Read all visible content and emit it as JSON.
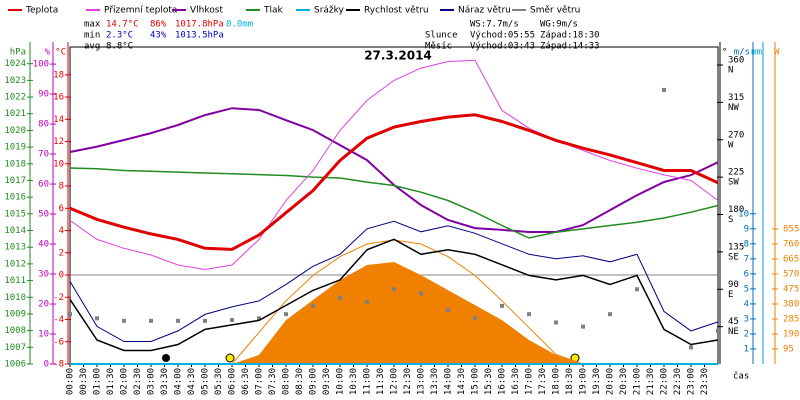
{
  "chart_data": {
    "type": "line",
    "title": "27.3.2014",
    "x_label": "čas",
    "x": [
      0,
      1,
      2,
      3,
      4,
      5,
      6,
      7,
      8,
      9,
      10,
      11,
      12,
      13,
      14,
      15,
      16,
      17,
      18,
      19,
      20,
      21,
      22,
      23,
      24
    ],
    "xlim": [
      0,
      24
    ],
    "xticks": [
      {
        "value": 0,
        "label": "00:00"
      },
      {
        "value": 0.5,
        "label": "00:30"
      },
      {
        "value": 1,
        "label": "01:00"
      },
      {
        "value": 1.5,
        "label": "01:30"
      },
      {
        "value": 2,
        "label": "02:00"
      },
      {
        "value": 2.5,
        "label": "02:30"
      },
      {
        "value": 3,
        "label": "03:00"
      },
      {
        "value": 3.5,
        "label": "03:30"
      },
      {
        "value": 4,
        "label": "04:00"
      },
      {
        "value": 4.5,
        "label": "04:30"
      },
      {
        "value": 5,
        "label": "05:00"
      },
      {
        "value": 5.5,
        "label": "05:30"
      },
      {
        "value": 6,
        "label": "06:00"
      },
      {
        "value": 6.5,
        "label": "06:30"
      },
      {
        "value": 7,
        "label": "07:00"
      },
      {
        "value": 7.5,
        "label": "07:30"
      },
      {
        "value": 8,
        "label": "08:00"
      },
      {
        "value": 8.5,
        "label": "08:30"
      },
      {
        "value": 9,
        "label": "09:00"
      },
      {
        "value": 9.5,
        "label": "09:30"
      },
      {
        "value": 10,
        "label": "10:00"
      },
      {
        "value": 10.5,
        "label": "10:30"
      },
      {
        "value": 11,
        "label": "11:00"
      },
      {
        "value": 11.5,
        "label": "11:30"
      },
      {
        "value": 12,
        "label": "12:00"
      },
      {
        "value": 12.5,
        "label": "12:30"
      },
      {
        "value": 13,
        "label": "13:00"
      },
      {
        "value": 13.5,
        "label": "13:30"
      },
      {
        "value": 14,
        "label": "14:00"
      },
      {
        "value": 14.5,
        "label": "14:30"
      },
      {
        "value": 15,
        "label": "15:00"
      },
      {
        "value": 15.5,
        "label": "15:30"
      },
      {
        "value": 16,
        "label": "16:00"
      },
      {
        "value": 16.5,
        "label": "16:30"
      },
      {
        "value": 17,
        "label": "17:00"
      },
      {
        "value": 17.5,
        "label": "17:30"
      },
      {
        "value": 18,
        "label": "18:00"
      },
      {
        "value": 18.5,
        "label": "18:30"
      },
      {
        "value": 19,
        "label": "19:00"
      },
      {
        "value": 19.5,
        "label": "19:30"
      },
      {
        "value": 20,
        "label": "20:00"
      },
      {
        "value": 20.5,
        "label": "20:30"
      },
      {
        "value": 21,
        "label": "21:00"
      },
      {
        "value": 21.5,
        "label": "21:30"
      },
      {
        "value": 22,
        "label": "22:00"
      },
      {
        "value": 22.5,
        "label": "22:30"
      },
      {
        "value": 23,
        "label": "23:00"
      },
      {
        "value": 23.5,
        "label": "23:30"
      }
    ],
    "axes": {
      "press": {
        "unit": "hPa",
        "color": "#228b22",
        "ylim": [
          1006,
          1025
        ],
        "yticks": [
          1006,
          1007,
          1008,
          1009,
          1010,
          1011,
          1012,
          1013,
          1014,
          1015,
          1016,
          1017,
          1018,
          1019,
          1020,
          1021,
          1022,
          1023,
          1024
        ]
      },
      "hum": {
        "unit": "%",
        "color": "#c000c0",
        "ylim": [
          0,
          105.7
        ],
        "yticks": [
          0,
          10,
          20,
          30,
          40,
          50,
          60,
          70,
          80,
          90,
          100
        ]
      },
      "temp": {
        "unit": "°C",
        "color": "#e00000",
        "ylim": [
          -8,
          20.5
        ],
        "yticks": [
          -8,
          -6,
          -4,
          -2,
          0,
          2,
          4,
          6,
          8,
          10,
          12,
          14,
          16,
          18
        ]
      },
      "dir": {
        "unit": "°",
        "color": "#000000",
        "ylim": [
          0,
          381.7
        ],
        "yticks": [
          {
            "value": 45,
            "label": "45",
            "dir": "NE"
          },
          {
            "value": 90,
            "label": "90",
            "dir": "E"
          },
          {
            "value": 135,
            "label": "135",
            "dir": "SE"
          },
          {
            "value": 180,
            "label": "180",
            "dir": "S"
          },
          {
            "value": 225,
            "label": "225",
            "dir": "SW"
          },
          {
            "value": 270,
            "label": "270",
            "dir": "W"
          },
          {
            "value": 315,
            "label": "315",
            "dir": "NW"
          },
          {
            "value": 360,
            "label": "360",
            "dir": "N"
          }
        ]
      },
      "ws": {
        "unit": "m/s",
        "color": "#0070c0",
        "ylim": [
          0,
          21.1
        ],
        "yticks": [
          1,
          2,
          3,
          4,
          5,
          6,
          7,
          8,
          9,
          10
        ]
      },
      "rain": {
        "unit": "mm",
        "color": "#00a0d0"
      },
      "solar": {
        "unit": "W",
        "color": "#f08000",
        "ylim": [
          0,
          2007
        ],
        "yticks": [
          95,
          190,
          285,
          380,
          475,
          570,
          665,
          760,
          855
        ]
      }
    },
    "zero_line": true,
    "series": [
      {
        "name": "Teplota",
        "color": "#e00000",
        "axis": "temp",
        "kind": "line",
        "width": 3,
        "values": [
          6.0,
          5.0,
          4.3,
          3.7,
          3.2,
          2.4,
          2.3,
          3.6,
          5.6,
          7.6,
          10.3,
          12.3,
          13.3,
          13.8,
          14.2,
          14.4,
          13.8,
          13.0,
          12.1,
          11.4,
          10.8,
          10.1,
          9.4,
          9.4,
          8.3
        ]
      },
      {
        "name": "Přízemní teplota",
        "color": "#e040e0",
        "axis": "temp",
        "kind": "line",
        "width": 1,
        "values": [
          4.9,
          3.2,
          2.4,
          1.8,
          0.9,
          0.5,
          0.9,
          3.2,
          6.7,
          9.4,
          13.0,
          15.7,
          17.5,
          18.6,
          19.2,
          19.3,
          14.8,
          13.2,
          12.1,
          11.2,
          10.3,
          9.6,
          9.0,
          8.5,
          6.7
        ]
      },
      {
        "name": "Vlhkost",
        "color": "#8000a0",
        "axis": "hum",
        "kind": "line",
        "width": 2,
        "values": [
          70.7,
          72.5,
          74.7,
          77,
          79.7,
          83,
          85.3,
          84.7,
          81.3,
          78,
          73,
          68,
          59.7,
          53,
          48,
          45.3,
          44.7,
          44,
          44,
          46.3,
          51.3,
          56.3,
          60.7,
          63,
          67.3
        ]
      },
      {
        "name": "Tlak",
        "color": "#228b22",
        "axis": "press",
        "kind": "line",
        "width": 1.5,
        "values": [
          1017.75,
          1017.7,
          1017.6,
          1017.55,
          1017.5,
          1017.45,
          1017.4,
          1017.35,
          1017.3,
          1017.2,
          1017.15,
          1016.9,
          1016.7,
          1016.3,
          1015.8,
          1015.1,
          1014.3,
          1013.55,
          1013.9,
          1014.1,
          1014.3,
          1014.5,
          1014.75,
          1015.1,
          1015.5
        ]
      },
      {
        "name": "Srážky",
        "color": "#00b0e0",
        "axis": "ws",
        "kind": "line",
        "width": 2,
        "values": [
          0,
          0,
          0,
          0,
          0,
          0,
          0,
          0,
          0,
          0,
          0,
          0,
          0,
          0,
          0,
          0,
          0,
          0,
          0,
          0,
          0,
          0,
          0,
          0,
          0
        ]
      },
      {
        "name": "Rychlost větru",
        "color": "#000000",
        "axis": "ws",
        "kind": "line",
        "width": 1.5,
        "values": [
          4.3,
          1.6,
          0.9,
          0.9,
          1.3,
          2.3,
          2.6,
          2.9,
          3.9,
          4.9,
          5.6,
          7.6,
          8.3,
          7.3,
          7.6,
          7.3,
          6.6,
          5.9,
          5.6,
          5.9,
          5.3,
          5.9,
          2.3,
          1.3,
          1.6
        ]
      },
      {
        "name": "Náraz větru",
        "color": "#000080",
        "axis": "ws",
        "kind": "line",
        "width": 1,
        "values": [
          5.5,
          2.5,
          1.5,
          1.5,
          2.2,
          3.3,
          3.8,
          4.2,
          5.3,
          6.5,
          7.3,
          9.0,
          9.5,
          8.8,
          9.2,
          8.7,
          8.0,
          7.3,
          7.0,
          7.2,
          6.8,
          7.3,
          3.5,
          2.2,
          2.8
        ]
      },
      {
        "name": "Směr větru",
        "color": "#808080",
        "axis": "dir",
        "kind": "dots",
        "values": [
          60,
          55,
          52,
          52,
          52,
          52,
          53,
          55,
          60,
          70,
          80,
          75,
          90,
          85,
          65,
          55,
          70,
          60,
          50,
          45,
          60,
          90,
          330,
          20,
          40
        ]
      }
    ],
    "solar": {
      "color": "#f08000",
      "axis": "solar",
      "values": [
        0,
        0,
        0,
        0,
        0,
        0,
        0,
        57,
        278,
        405,
        532,
        627,
        646,
        563,
        468,
        373,
        278,
        152,
        57,
        0,
        0,
        0,
        0,
        0,
        0
      ]
    },
    "solar_max": {
      "color": "#f08000",
      "axis": "solar",
      "values": [
        null,
        null,
        null,
        null,
        null,
        null,
        0,
        200,
        400,
        560,
        680,
        760,
        785,
        760,
        680,
        560,
        400,
        230,
        60,
        0,
        null,
        null,
        null,
        null,
        null
      ]
    },
    "stats": {
      "max": [
        "max",
        "14.7°C",
        "86%",
        "1017.8hPa",
        "0.0mm"
      ],
      "min": [
        "min",
        "2.3°C",
        "43%",
        "1013.5hPa"
      ],
      "avg": [
        "avg",
        "8.8°C"
      ],
      "wind": [
        "WS:7.7m/s",
        "WG:9m/s"
      ],
      "sun": [
        "Slunce",
        "Východ:05:55",
        "Západ:18:30"
      ],
      "moon": [
        "Měsíc",
        "Východ:03:43",
        "Západ:14:33"
      ]
    }
  }
}
